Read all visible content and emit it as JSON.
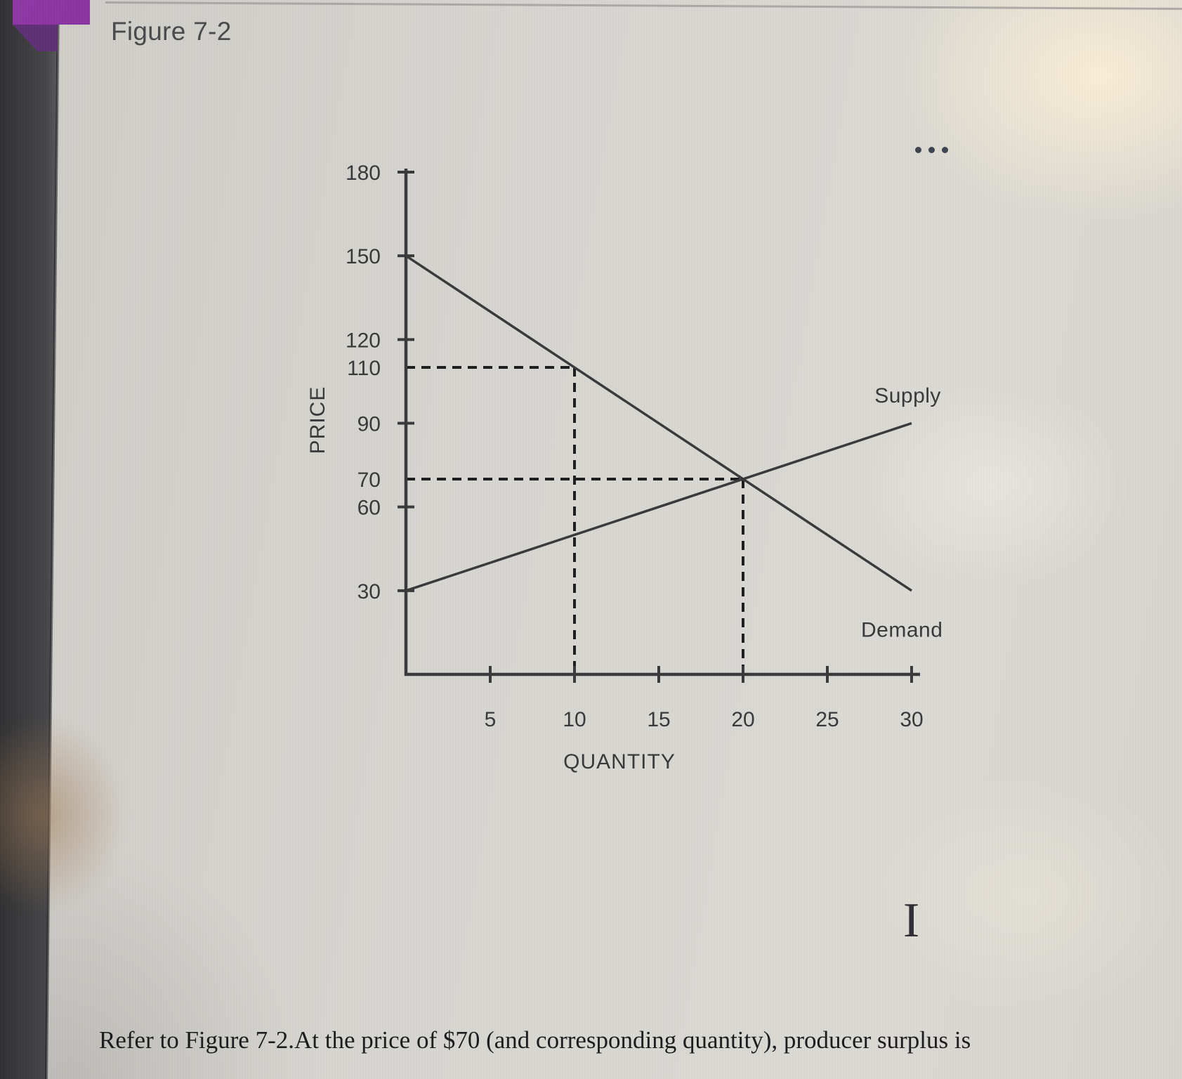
{
  "app": {
    "title": "Figure 7-2",
    "question_text": "Refer to Figure 7-2.At the price of $70 (and corresponding quantity), producer surplus is",
    "more_options_icon": "ellipsis-horizontal-icon",
    "text_cursor_glyph": "I"
  },
  "colors": {
    "page_bg": "#d7d5d0",
    "chart_ink": "#3a3a3c",
    "dash_ink": "#1e1e20",
    "label_ink": "#39393b",
    "title_ink": "#4a4a4c",
    "question_ink": "#1c1c1e",
    "accent_purple": "#9038a8",
    "accent_purple_dark": "#5f3076",
    "bezel_dark": "#3a3a3d",
    "menu_dots": "#3e4450"
  },
  "chart_data": {
    "type": "line",
    "title": "Figure 7-2",
    "xlabel": "QUANTITY",
    "ylabel": "PRICE",
    "xlim": [
      0,
      30.5
    ],
    "ylim": [
      0,
      181
    ],
    "x_ticks": [
      5,
      10,
      15,
      20,
      25,
      30
    ],
    "y_tick_labels": [
      180,
      150,
      120,
      110,
      90,
      70,
      60,
      30
    ],
    "y_major_ticks": [
      180,
      150,
      120,
      90,
      60,
      30
    ],
    "grid": false,
    "legend_position": "on-curve",
    "series": [
      {
        "name": "Demand",
        "points": [
          [
            0,
            150
          ],
          [
            30,
            30
          ]
        ]
      },
      {
        "name": "Supply",
        "points": [
          [
            0,
            30
          ],
          [
            30,
            90
          ]
        ]
      }
    ],
    "dashed_guides": [
      {
        "name": "price-110-guide",
        "points": [
          [
            0,
            110
          ],
          [
            10,
            110
          ]
        ]
      },
      {
        "name": "quantity-10-guide",
        "points": [
          [
            10,
            110
          ],
          [
            10,
            0
          ]
        ]
      },
      {
        "name": "price-70-guide",
        "points": [
          [
            0,
            70
          ],
          [
            20,
            70
          ]
        ]
      },
      {
        "name": "quantity-20-guide",
        "points": [
          [
            20,
            70
          ],
          [
            20,
            0
          ]
        ]
      }
    ],
    "annotations": [
      {
        "text": "Supply",
        "q": 27.8,
        "p": 100
      },
      {
        "text": "Demand",
        "q": 27.0,
        "p": 16
      }
    ]
  }
}
